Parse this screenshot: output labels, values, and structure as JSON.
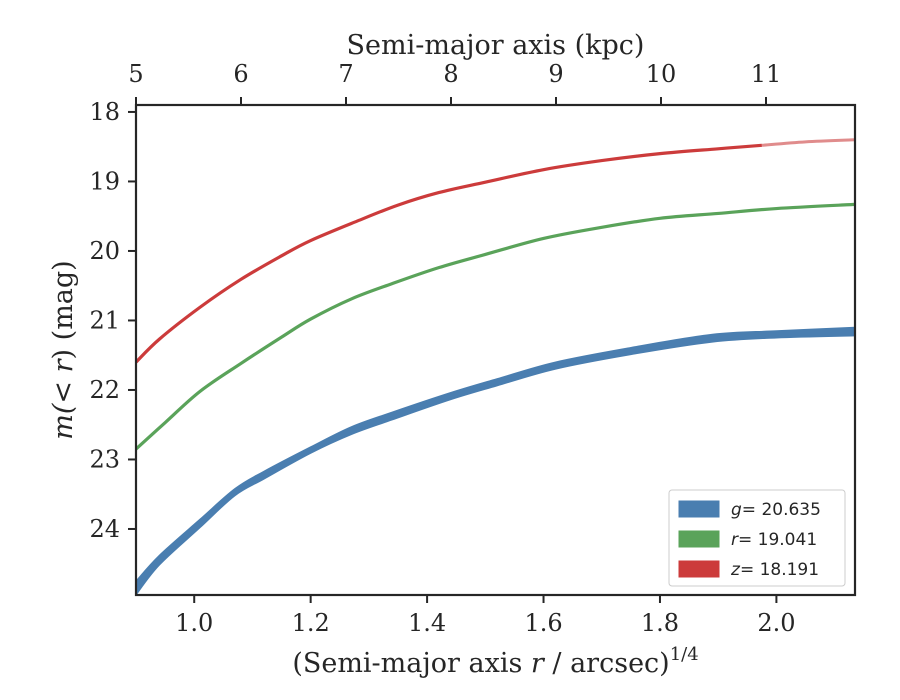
{
  "chart_data": {
    "type": "line",
    "title": "",
    "xlabel_bottom": {
      "prefix": "(Semi-major axis ",
      "var": "r",
      "suffix": " / arcsec)",
      "exp": "1/4"
    },
    "xlabel_top": "Semi-major axis (kpc)",
    "ylabel": {
      "main": "m(",
      "var": "< r",
      "close": ")",
      "unit": " (mag)"
    },
    "xlim": [
      0.9,
      2.135
    ],
    "ylim": [
      24.95,
      17.9
    ],
    "y_inverted": true,
    "xticks": [
      1.0,
      1.2,
      1.4,
      1.6,
      1.8,
      2.0
    ],
    "xtick_labels": [
      "1.0",
      "1.2",
      "1.4",
      "1.6",
      "1.8",
      "2.0"
    ],
    "yticks": [
      18,
      19,
      20,
      21,
      22,
      23,
      24
    ],
    "ytick_labels": [
      "18",
      "19",
      "20",
      "21",
      "22",
      "23",
      "24"
    ],
    "top_ticks_kpc": [
      5,
      6,
      7,
      8,
      9,
      10,
      11
    ],
    "top_tick_labels": [
      "5",
      "6",
      "7",
      "8",
      "9",
      "10",
      "11"
    ],
    "grid": false,
    "legend_position": "lower-right",
    "series": [
      {
        "name": "g = 20.635",
        "legend_var": "g",
        "legend_value": "= 20.635",
        "color": "#4a7eb0",
        "style": "band",
        "x": [
          0.9,
          0.94,
          1.01,
          1.07,
          1.12,
          1.2,
          1.27,
          1.34,
          1.44,
          1.52,
          1.62,
          1.75,
          1.89,
          2.0,
          2.135
        ],
        "y_upper": [
          24.75,
          24.38,
          23.86,
          23.42,
          23.17,
          22.82,
          22.53,
          22.32,
          22.04,
          21.84,
          21.6,
          21.39,
          21.2,
          21.15,
          21.1
        ],
        "y_lower": [
          24.95,
          24.52,
          23.98,
          23.52,
          23.28,
          22.91,
          22.64,
          22.43,
          22.14,
          21.94,
          21.7,
          21.49,
          21.31,
          21.25,
          21.22
        ]
      },
      {
        "name": "r = 19.041",
        "legend_var": "r",
        "legend_value": "= 19.041",
        "color": "#5aa35a",
        "style": "line",
        "x": [
          0.9,
          0.95,
          1.01,
          1.08,
          1.15,
          1.2,
          1.27,
          1.34,
          1.42,
          1.5,
          1.6,
          1.7,
          1.8,
          1.9,
          2.0,
          2.135
        ],
        "y": [
          22.85,
          22.47,
          22.02,
          21.62,
          21.24,
          20.98,
          20.69,
          20.47,
          20.24,
          20.05,
          19.82,
          19.66,
          19.53,
          19.46,
          19.39,
          19.33
        ]
      },
      {
        "name": "z = 18.191",
        "legend_var": "z",
        "legend_value": "= 18.191",
        "color": "#cc3b3b",
        "style": "line",
        "x": [
          0.9,
          0.94,
          1.01,
          1.08,
          1.15,
          1.2,
          1.28,
          1.35,
          1.42,
          1.5,
          1.6,
          1.7,
          1.8,
          1.9,
          1.975,
          2.05,
          2.135
        ],
        "y": [
          21.6,
          21.27,
          20.81,
          20.41,
          20.07,
          19.85,
          19.57,
          19.34,
          19.16,
          19.01,
          18.83,
          18.7,
          18.6,
          18.53,
          18.48,
          18.43,
          18.4
        ],
        "solid_until_x": 1.975,
        "faded_after_color": "#e08c8c"
      }
    ]
  }
}
